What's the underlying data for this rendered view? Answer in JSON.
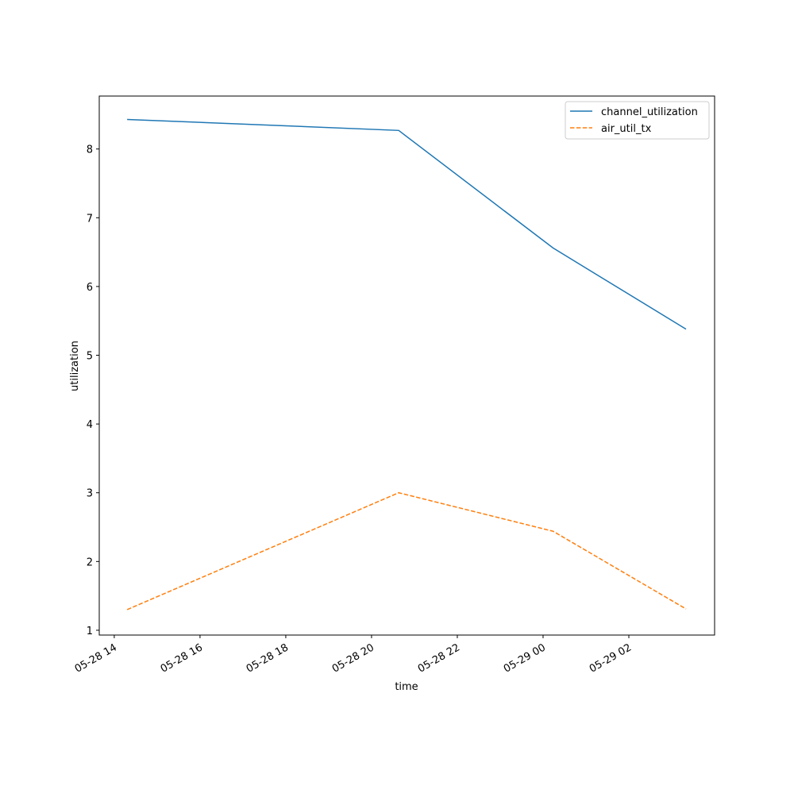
{
  "chart_data": {
    "type": "line",
    "x_label": "time",
    "y_label": "utilization",
    "x": [
      "05-28 14:18",
      "05-28 20:38",
      "05-29 00:14",
      "05-29 03:20"
    ],
    "series": [
      {
        "name": "channel_utilization",
        "color": "#1f77b4",
        "dash": "solid",
        "values": [
          8.43,
          8.27,
          6.56,
          5.38
        ]
      },
      {
        "name": "air_util_tx",
        "color": "#ff7f0e",
        "dash": "dashed",
        "values": [
          1.3,
          3.0,
          2.44,
          1.31
        ]
      }
    ],
    "xlim": [
      "05-28 13:39",
      "05-29 04:00"
    ],
    "xticks": [
      {
        "value": "05-28 14:00",
        "label": "05-28 14"
      },
      {
        "value": "05-28 16:00",
        "label": "05-28 16"
      },
      {
        "value": "05-28 18:00",
        "label": "05-28 18"
      },
      {
        "value": "05-28 20:00",
        "label": "05-28 20"
      },
      {
        "value": "05-28 22:00",
        "label": "05-28 22"
      },
      {
        "value": "05-29 00:00",
        "label": "05-29 00"
      },
      {
        "value": "05-29 02:00",
        "label": "05-29 02"
      }
    ],
    "ylim": [
      0.93,
      8.77
    ],
    "yticks": [
      1,
      2,
      3,
      4,
      5,
      6,
      7,
      8
    ],
    "grid": false,
    "legend": "upper right"
  }
}
